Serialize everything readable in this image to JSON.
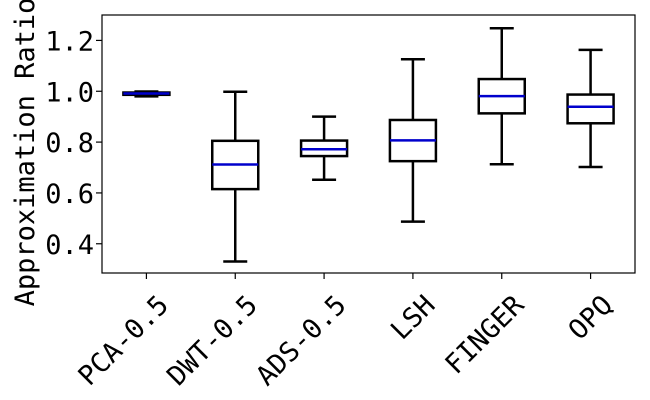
{
  "chart_data": {
    "type": "box",
    "ylabel": "Approximation Ratio",
    "xlabel": "",
    "ylim": [
      0.285,
      1.3
    ],
    "yticks": [
      0.4,
      0.6,
      0.8,
      1.0,
      1.2
    ],
    "ytick_labels": [
      "0.4",
      "0.6",
      "0.8",
      "1.0",
      "1.2"
    ],
    "grid": false,
    "colors": {
      "box": "#000000",
      "median": "#0000cc"
    },
    "categories": [
      "PCA-0.5",
      "DWT-0.5",
      "ADS-0.5",
      "LSH",
      "FINGER",
      "OPQ"
    ],
    "boxes": [
      {
        "label": "PCA-0.5",
        "whisker_low": 0.98,
        "q1": 0.986,
        "median": 0.991,
        "q3": 0.995,
        "whisker_high": 0.999
      },
      {
        "label": "DWT-0.5",
        "whisker_low": 0.33,
        "q1": 0.615,
        "median": 0.712,
        "q3": 0.805,
        "whisker_high": 0.998
      },
      {
        "label": "ADS-0.5",
        "whisker_low": 0.652,
        "q1": 0.745,
        "median": 0.772,
        "q3": 0.806,
        "whisker_high": 0.9
      },
      {
        "label": "LSH",
        "whisker_low": 0.487,
        "q1": 0.725,
        "median": 0.807,
        "q3": 0.887,
        "whisker_high": 1.126
      },
      {
        "label": "FINGER",
        "whisker_low": 0.713,
        "q1": 0.913,
        "median": 0.981,
        "q3": 1.048,
        "whisker_high": 1.248
      },
      {
        "label": "OPQ",
        "whisker_low": 0.702,
        "q1": 0.874,
        "median": 0.939,
        "q3": 0.987,
        "whisker_high": 1.163
      }
    ]
  }
}
